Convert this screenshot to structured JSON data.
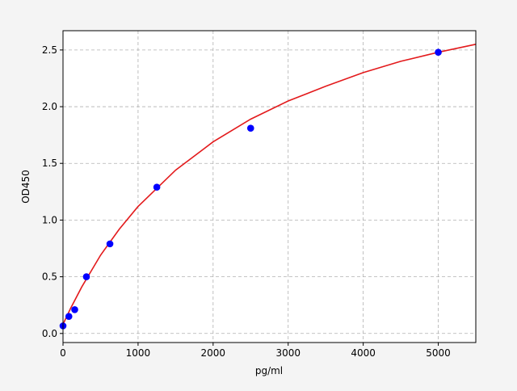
{
  "chart_data": {
    "type": "scatter",
    "title": "",
    "xlabel": "pg/ml",
    "ylabel": "OD450",
    "xlim": [
      0,
      5500
    ],
    "ylim": [
      -0.08,
      2.67
    ],
    "xticks": [
      0,
      1000,
      2000,
      3000,
      4000,
      5000
    ],
    "xtick_labels": [
      "0",
      "1000",
      "2000",
      "3000",
      "4000",
      "5000"
    ],
    "yticks": [
      0.0,
      0.5,
      1.0,
      1.5,
      2.0,
      2.5
    ],
    "ytick_labels": [
      "0.0",
      "0.5",
      "1.0",
      "1.5",
      "2.0",
      "2.5"
    ],
    "grid": true,
    "series": [
      {
        "kind": "points",
        "color": "#0000ff",
        "x": [
          0,
          78,
          156,
          312,
          625,
          1250,
          2500,
          5000
        ],
        "y": [
          0.067,
          0.15,
          0.21,
          0.5,
          0.79,
          1.29,
          1.81,
          2.48
        ]
      },
      {
        "kind": "fit-curve",
        "color": "#e31a1c",
        "x": [
          0,
          50,
          100,
          250,
          500,
          750,
          1000,
          1500,
          2000,
          2500,
          3000,
          3500,
          4000,
          4500,
          5000,
          5500
        ],
        "y": [
          0.08,
          0.15,
          0.22,
          0.41,
          0.69,
          0.92,
          1.12,
          1.44,
          1.69,
          1.89,
          2.05,
          2.18,
          2.3,
          2.4,
          2.48,
          2.55
        ]
      }
    ]
  }
}
